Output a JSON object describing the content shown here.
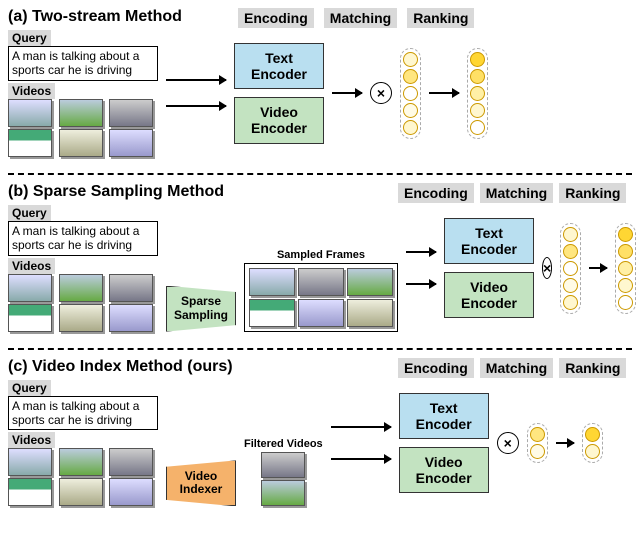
{
  "panel_a": {
    "title": "(a) Two-stream Method",
    "stages": [
      "Encoding",
      "Matching",
      "Ranking"
    ],
    "query_label": "Query",
    "query_text": "A man is talking about a sports car he is driving",
    "videos_label": "Videos",
    "text_encoder": "Text Encoder",
    "video_encoder": "Video Encoder",
    "match_symbol": "×",
    "unranked_dots": [
      "#fff7cf",
      "#ffe680",
      "#fff",
      "#fffbe6",
      "#fff7cf"
    ],
    "ranked_dots": [
      "#ffd633",
      "#ffe066",
      "#fff0a6",
      "#fff7cf",
      "#fff"
    ],
    "colors": {
      "text_enc_bg": "#b9dff0",
      "vid_enc_bg": "#c3e3c1",
      "stage_bg": "#d9d9d9"
    }
  },
  "panel_b": {
    "title": "(b) Sparse Sampling Method",
    "stages": [
      "Encoding",
      "Matching",
      "Ranking"
    ],
    "query_label": "Query",
    "query_text": "A man is talking about a sports car he is driving",
    "videos_label": "Videos",
    "sparse_label": "Sparse Sampling",
    "frames_label": "Sampled Frames",
    "text_encoder": "Text Encoder",
    "video_encoder": "Video Encoder",
    "match_symbol": "×",
    "unranked_dots": [
      "#fff7cf",
      "#ffe680",
      "#fff",
      "#fffbe6",
      "#fff7cf"
    ],
    "ranked_dots": [
      "#ffd633",
      "#ffe066",
      "#fff0a6",
      "#fff7cf",
      "#fff"
    ]
  },
  "panel_c": {
    "title": "(c) Video Index Method (ours)",
    "stages": [
      "Encoding",
      "Matching",
      "Ranking"
    ],
    "query_label": "Query",
    "query_text": "A man is talking about a sports car he is driving",
    "videos_label": "Videos",
    "indexer_label": "Video Indexer",
    "filtered_label": "Filtered Videos",
    "text_encoder": "Text Encoder",
    "video_encoder": "Video Encoder",
    "match_symbol": "×",
    "unranked_dots": [
      "#ffe680",
      "#fffbe6"
    ],
    "ranked_dots": [
      "#ffd633",
      "#fff7cf"
    ],
    "colors": {
      "indexer_bg": "#f5b26b"
    }
  },
  "styling": {
    "font_family": "Arial",
    "title_fontsize": 16,
    "stage_fontsize": 14,
    "body_fontsize": 12,
    "divider_style": "2px dashed #000",
    "background": "#ffffff",
    "dot_border": "#cc9900",
    "arrow_color": "#000000"
  }
}
